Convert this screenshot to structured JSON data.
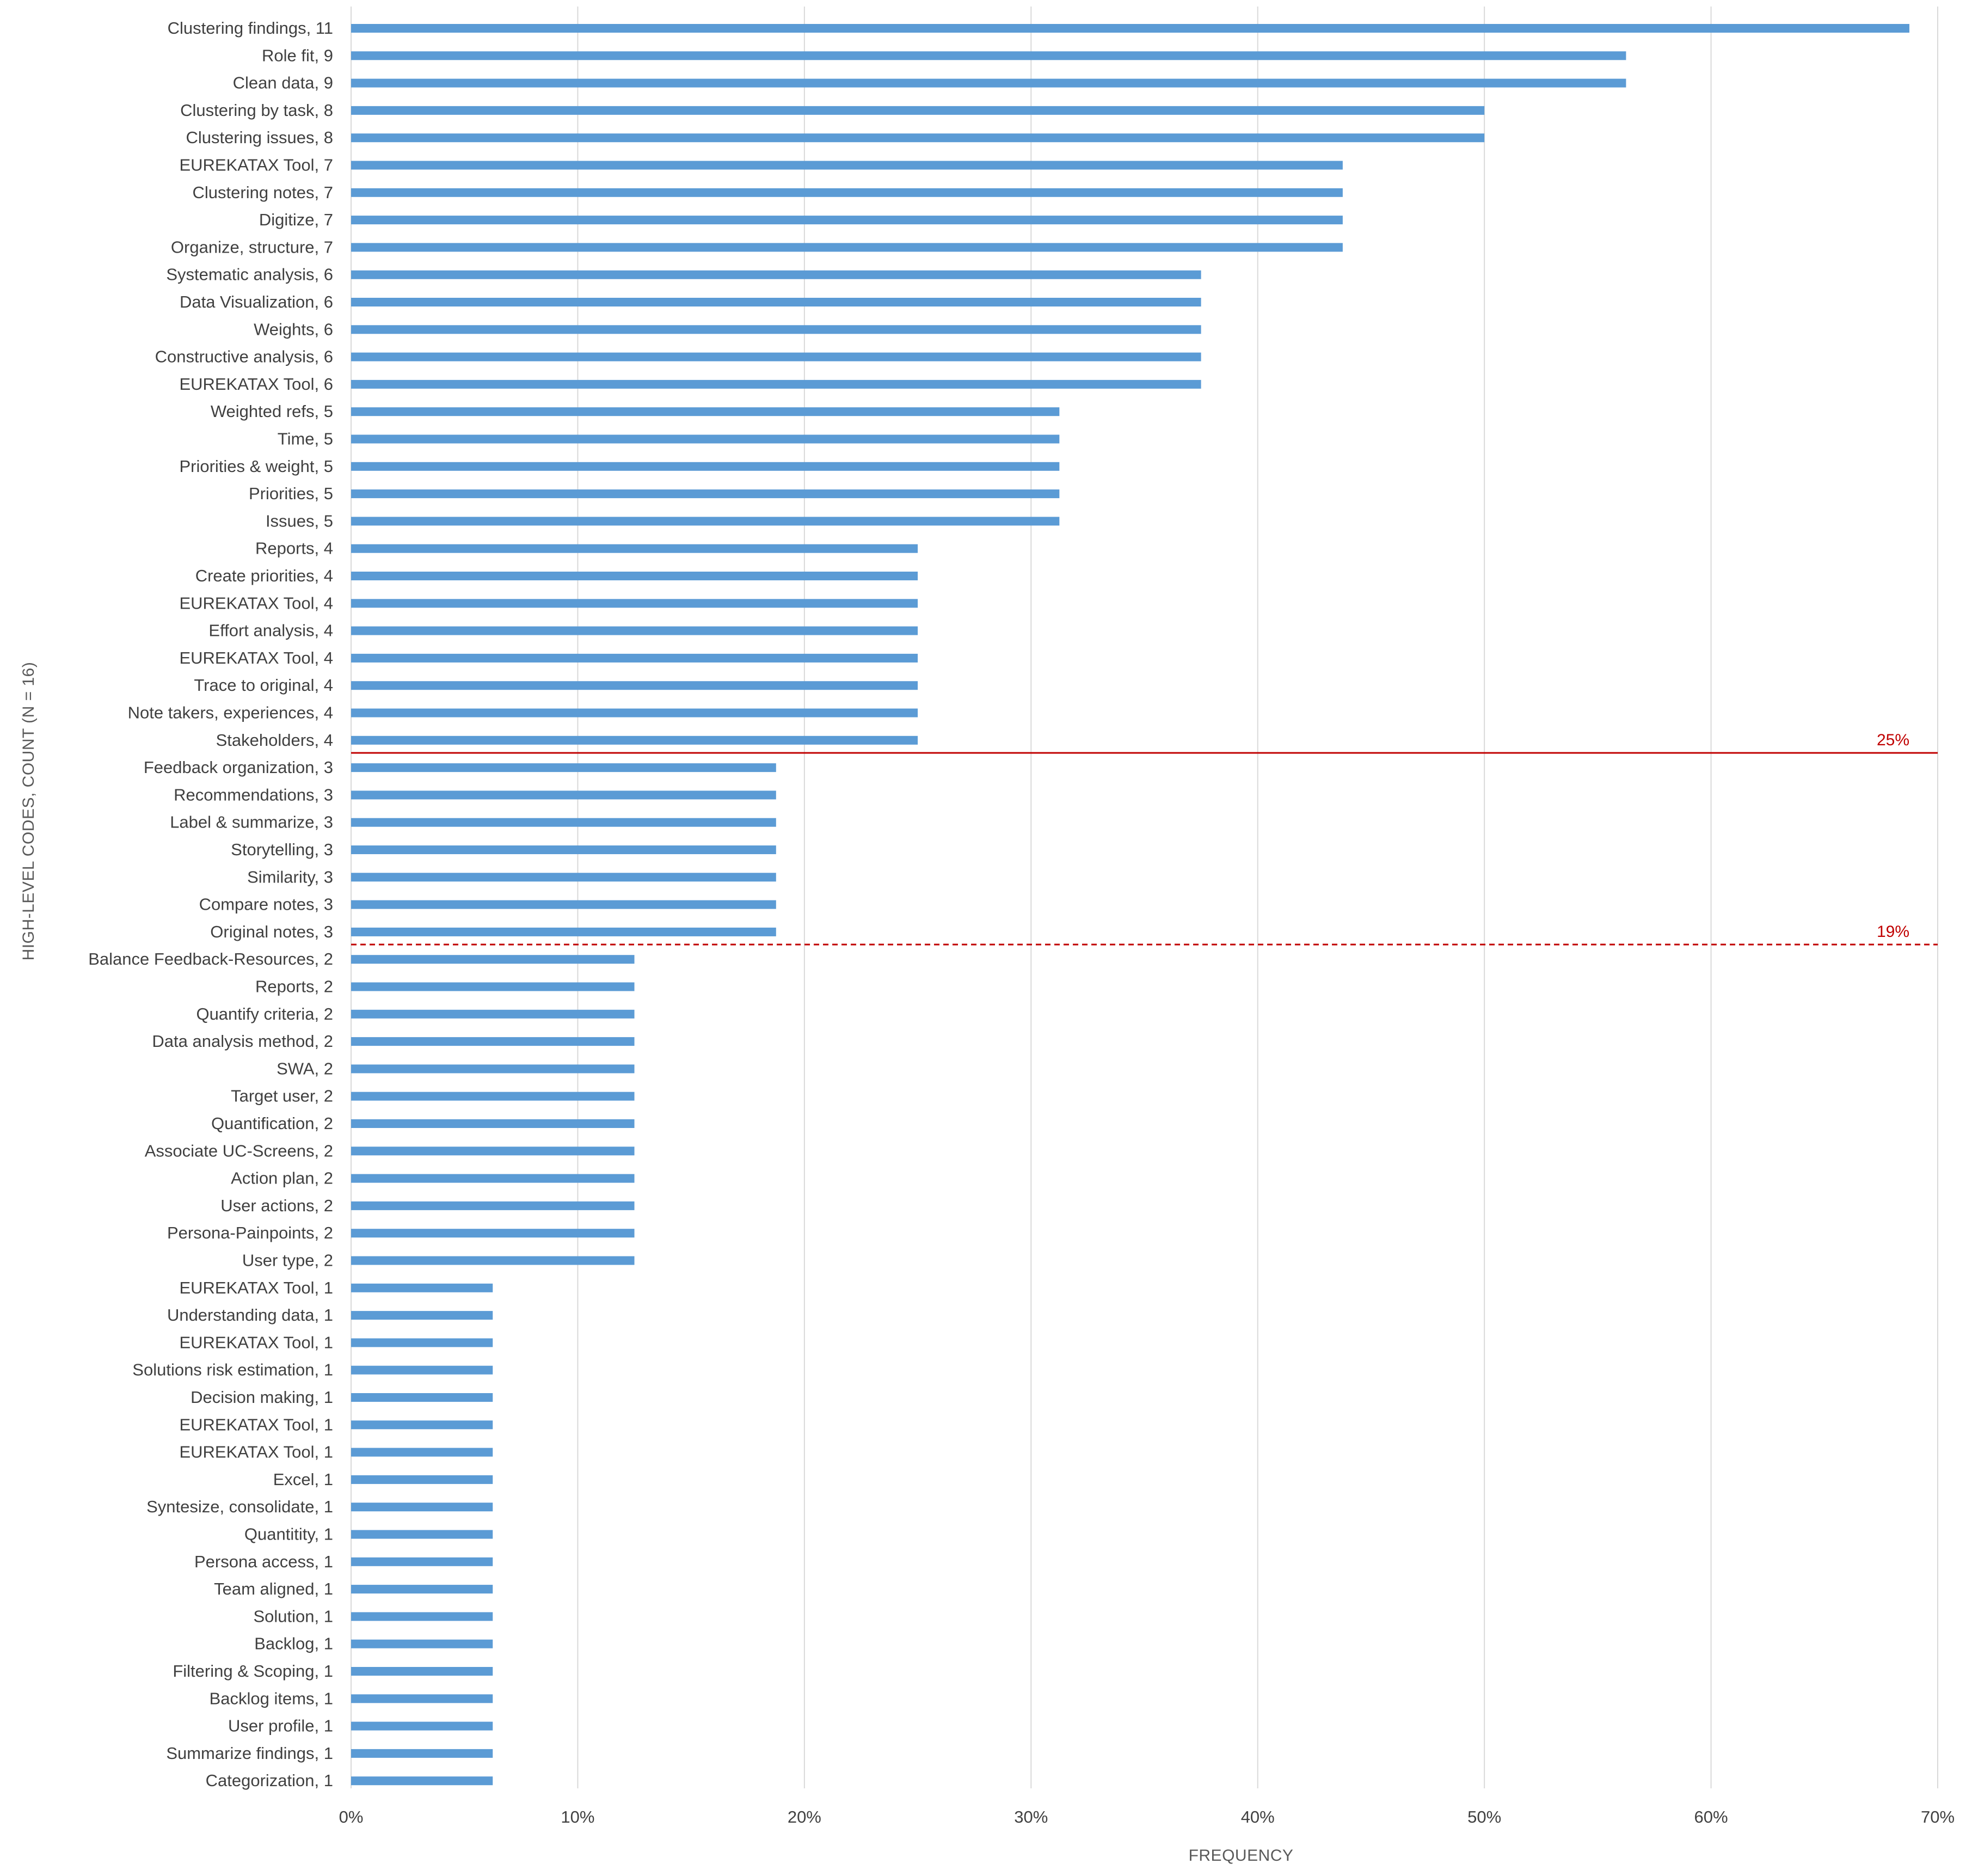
{
  "chart_data": {
    "type": "bar",
    "orientation": "horizontal",
    "xlabel": "FREQUENCY",
    "ylabel": "HIGH-LEVEL CODES, COUNT (N = 16)",
    "xlim": [
      0,
      0.7
    ],
    "x_ticks": [
      0,
      0.1,
      0.2,
      0.3,
      0.4,
      0.5,
      0.6,
      0.7
    ],
    "x_tick_labels": [
      "0%",
      "10%",
      "20%",
      "30%",
      "40%",
      "50%",
      "60%",
      "70%"
    ],
    "grid": "vertical",
    "bar_color": "#5b9bd5",
    "reference_lines": [
      {
        "value": 0.25,
        "label": "25%",
        "style": "solid",
        "color": "#c00000"
      },
      {
        "value": 0.1875,
        "label": "19%",
        "style": "dashed",
        "color": "#c00000"
      }
    ],
    "categories": [
      "Clustering findings, 11",
      "Role fit, 9",
      "Clean data, 9",
      "Clustering by task, 8",
      "Clustering issues, 8",
      "EUREKATAX Tool, 7",
      "Clustering notes, 7",
      "Digitize, 7",
      "Organize, structure, 7",
      "Systematic analysis, 6",
      "Data Visualization, 6",
      "Weights, 6",
      "Constructive analysis, 6",
      "EUREKATAX Tool, 6",
      "Weighted refs, 5",
      "Time, 5",
      "Priorities & weight, 5",
      "Priorities, 5",
      "Issues, 5",
      "Reports, 4",
      "Create priorities, 4",
      "EUREKATAX Tool, 4",
      "Effort analysis, 4",
      "EUREKATAX Tool, 4",
      "Trace to original, 4",
      "Note takers, experiences, 4",
      "Stakeholders, 4",
      "Feedback organization, 3",
      "Recommendations, 3",
      "Label & summarize, 3",
      "Storytelling, 3",
      "Similarity, 3",
      "Compare notes, 3",
      "Original notes, 3",
      "Balance Feedback-Resources, 2",
      "Reports, 2",
      "Quantify criteria, 2",
      "Data analysis method, 2",
      "SWA, 2",
      "Target user, 2",
      "Quantification, 2",
      "Associate UC-Screens, 2",
      "Action plan, 2",
      "User actions, 2",
      "Persona-Painpoints, 2",
      "User type, 2",
      "EUREKATAX Tool, 1",
      "Understanding data, 1",
      "EUREKATAX Tool, 1",
      "Solutions risk estimation, 1",
      "Decision making, 1",
      "EUREKATAX Tool, 1",
      "EUREKATAX Tool, 1",
      "Excel, 1",
      "Syntesize, consolidate, 1",
      "Quantitity, 1",
      "Persona access, 1",
      "Team aligned, 1",
      "Solution, 1",
      "Backlog, 1",
      "Filtering & Scoping, 1",
      "Backlog items, 1",
      "User profile, 1",
      "Summarize findings, 1",
      "Categorization, 1"
    ],
    "values": [
      0.6875,
      0.5625,
      0.5625,
      0.5,
      0.5,
      0.4375,
      0.4375,
      0.4375,
      0.4375,
      0.375,
      0.375,
      0.375,
      0.375,
      0.375,
      0.3125,
      0.3125,
      0.3125,
      0.3125,
      0.3125,
      0.25,
      0.25,
      0.25,
      0.25,
      0.25,
      0.25,
      0.25,
      0.25,
      0.1875,
      0.1875,
      0.1875,
      0.1875,
      0.1875,
      0.1875,
      0.1875,
      0.125,
      0.125,
      0.125,
      0.125,
      0.125,
      0.125,
      0.125,
      0.125,
      0.125,
      0.125,
      0.125,
      0.125,
      0.0625,
      0.0625,
      0.0625,
      0.0625,
      0.0625,
      0.0625,
      0.0625,
      0.0625,
      0.0625,
      0.0625,
      0.0625,
      0.0625,
      0.0625,
      0.0625,
      0.0625,
      0.0625,
      0.0625,
      0.0625,
      0.0625
    ]
  }
}
